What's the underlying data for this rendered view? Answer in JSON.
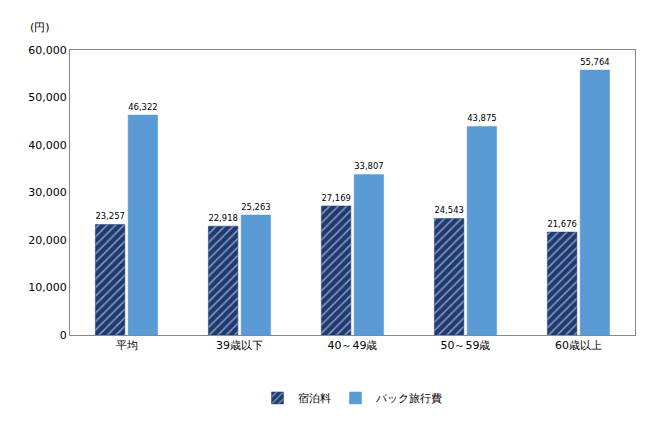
{
  "chart_data": {
    "type": "bar",
    "ylabel": "(円)",
    "categories": [
      "平均",
      "39歳以下",
      "40～49歳",
      "50～59歳",
      "60歳以上"
    ],
    "series": [
      {
        "name": "宿泊料",
        "color": "#1f3b73",
        "marker": "hatch",
        "values": [
          23257,
          22918,
          27169,
          24543,
          21676
        ],
        "value_labels": [
          "23,257",
          "22,918",
          "27,169",
          "24,543",
          "21,676"
        ]
      },
      {
        "name": "パック旅行費",
        "color": "#5b9bd5",
        "values": [
          46322,
          25263,
          33807,
          43875,
          55764
        ],
        "value_labels": [
          "46,322",
          "25,263",
          "33,807",
          "43,875",
          "55,764"
        ]
      }
    ],
    "ylim": [
      0,
      60000
    ],
    "yticks": [
      0,
      {
        "value": 10000,
        "label": "10,000"
      },
      {
        "value": 20000,
        "label": "20,000"
      },
      {
        "value": 30000,
        "label": "30,000"
      },
      {
        "value": 40000,
        "label": "40,000"
      },
      {
        "value": 50000,
        "label": "50,000"
      },
      {
        "value": 60000,
        "label": "60,000"
      }
    ],
    "grid": false,
    "legend": "bottom",
    "data_labels": true
  }
}
